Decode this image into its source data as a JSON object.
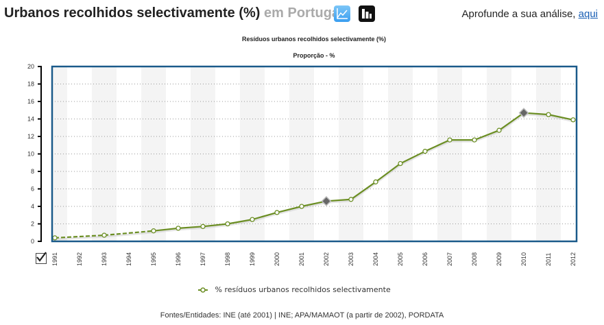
{
  "header": {
    "title": "Urbanos recolhidos selectivamente (%)",
    "location": "em Portugal",
    "line_chart_icon": "line-chart-icon",
    "bar_chart_icon": "bar-chart-icon",
    "analysis_text": "Aprofunde a sua análise,",
    "analysis_link": "aqui"
  },
  "legend": {
    "label": "% resíduos urbanos recolhidos selectivamente"
  },
  "source": "Fontes/Entidades: INE (até 2001) | INE; APA/MAMAOT (a partir de 2002), PORDATA",
  "colors": {
    "series": "#6b8e23",
    "frame": "#1a5a8a",
    "band": "#f4f4f4",
    "marker_highlight": "#666666"
  },
  "chart_data": {
    "type": "line",
    "title": "Resíduos urbanos recolhidos selectivamente (%)",
    "subtitle": "Proporção - %",
    "xlabel": "",
    "ylabel": "",
    "ylim": [
      0,
      20
    ],
    "yticks": [
      0,
      2,
      4,
      6,
      8,
      10,
      12,
      14,
      16,
      18,
      20
    ],
    "grid": true,
    "legend_position": "bottom",
    "categories": [
      "1991",
      "1992",
      "1993",
      "1994",
      "1995",
      "1996",
      "1997",
      "1998",
      "1999",
      "2000",
      "2001",
      "2002",
      "2003",
      "2004",
      "2005",
      "2006",
      "2007",
      "2008",
      "2009",
      "2010",
      "2011",
      "2012"
    ],
    "series": [
      {
        "name": "% resíduos urbanos recolhidos selectivamente",
        "values": [
          0.4,
          null,
          0.7,
          null,
          1.2,
          1.5,
          1.7,
          2.0,
          2.5,
          3.3,
          4.0,
          4.6,
          4.8,
          6.8,
          8.9,
          10.3,
          11.6,
          11.6,
          12.7,
          14.7,
          14.5,
          13.9
        ],
        "highlighted": [
          "2002",
          "2010"
        ],
        "dashed_segments_until": "1995"
      }
    ]
  }
}
